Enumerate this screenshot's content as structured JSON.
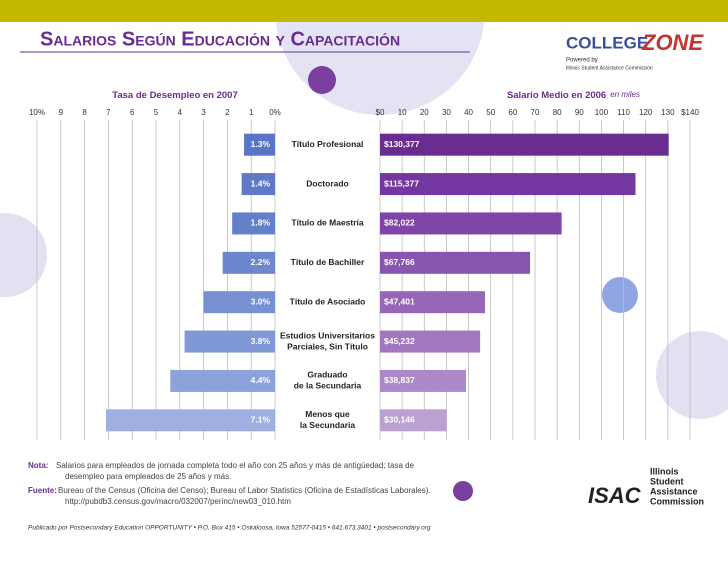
{
  "header": {
    "title": "Salarios Según Educación y Capacitación"
  },
  "logo": {
    "college": "COLLEGE",
    "zone": "ZONE",
    "powered": "Powered by",
    "commission": "Illinois Student Assistance Commission"
  },
  "chart_data": [
    {
      "type": "bar",
      "title": "Tasa de Desempleo en 2007",
      "color": "#6f86cf",
      "categories": [
        [
          "Título Profesional"
        ],
        [
          "Doctorado"
        ],
        [
          "Título de Maestría"
        ],
        [
          "Título de Bachiller"
        ],
        [
          "Título de Asociado"
        ],
        [
          "Estudios Universitarios",
          "Parciales, Sin Título"
        ],
        [
          "Graduado",
          "de la Secundaria"
        ],
        [
          "Menos que",
          "la Secundaria"
        ]
      ],
      "values": [
        1.3,
        1.4,
        1.8,
        2.2,
        3.0,
        3.8,
        4.4,
        7.1
      ],
      "value_labels": [
        "1.3%",
        "1.4%",
        "1.8%",
        "2.2%",
        "3.0%",
        "3.8%",
        "4.4%",
        "7.1%"
      ],
      "colors": [
        "#5a74c6",
        "#5f79c8",
        "#6580cb",
        "#6d87ce",
        "#7690d2",
        "#8098d5",
        "#8ca3da",
        "#9fb0e0"
      ],
      "xlim": [
        10,
        0
      ],
      "xticks": [
        {
          "value": 10,
          "label": "10%"
        },
        9,
        8,
        7,
        6,
        5,
        4,
        3,
        2,
        1,
        {
          "value": 0,
          "label": "0%"
        }
      ],
      "grid": true
    },
    {
      "type": "bar",
      "title": "Salario Medio en 2006",
      "subtitle": "en miles",
      "color": "#6a2c91",
      "values": [
        130.377,
        115.377,
        82.022,
        67.766,
        47.401,
        45.232,
        38.837,
        30.146
      ],
      "value_labels": [
        "$130,377",
        "$115,377",
        "$82,022",
        "$67,766",
        "$47,401",
        "$45,232",
        "$38,837",
        "$30,146"
      ],
      "colors": [
        "#6a2c91",
        "#7436a0",
        "#7f45a8",
        "#8a55b0",
        "#9666b8",
        "#a277bf",
        "#ad88c6",
        "#bba0d2"
      ],
      "xlim": [
        0,
        140
      ],
      "xticks": [
        {
          "value": 0,
          "label": "$0"
        },
        10,
        20,
        30,
        40,
        50,
        60,
        70,
        80,
        90,
        100,
        110,
        120,
        130,
        {
          "value": 140,
          "label": "$140"
        }
      ],
      "grid": true
    }
  ],
  "notes": [
    {
      "label": "Nota:",
      "lines": [
        "Salarios para empleados de jornada completa todo el año con 25 años y más de antigüedad; tasa de",
        "desempleo para empleados de 25 años y más."
      ]
    },
    {
      "label": "Fuente:",
      "lines": [
        "Bureau of the Census (Oficina del Censo); Bureau of Labor Statistics (Oficina de Estadísticas Laborales).",
        "http://pubdb3.census.gov/macro/032007/perinc/new03_010.htm"
      ]
    }
  ],
  "footer": "Publicado por Postsecondary Education OPPORTUNITY • P.O. Box 415 • Oskaloosa, Iowa 52577-0415 • 641.673.3401 • postsecondary.org",
  "isac": {
    "mark": "ISAC",
    "lines": [
      "Illinois",
      "Student",
      "Assistance",
      "Commission"
    ]
  }
}
